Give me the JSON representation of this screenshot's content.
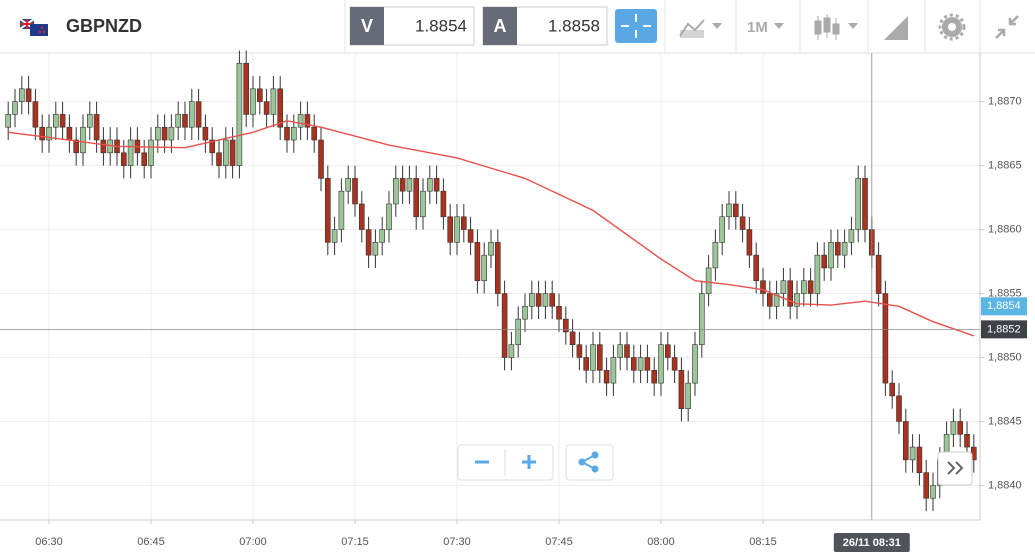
{
  "toolbar": {
    "symbol": "GBPNZD",
    "bid_label": "V",
    "bid": "1.8854",
    "ask_label": "A",
    "ask": "1.8858",
    "timeframe": "1M"
  },
  "chart_data": {
    "type": "candlestick",
    "categories": [
      "06:24",
      "06:25",
      "06:26",
      "06:27",
      "06:28",
      "06:29",
      "06:30",
      "06:31",
      "06:32",
      "06:33",
      "06:34",
      "06:35",
      "06:36",
      "06:37",
      "06:38",
      "06:39",
      "06:40",
      "06:41",
      "06:42",
      "06:43",
      "06:44",
      "06:45",
      "06:46",
      "06:47",
      "06:48",
      "06:49",
      "06:50",
      "06:51",
      "06:52",
      "06:53",
      "06:54",
      "06:55",
      "06:56",
      "06:57",
      "06:58",
      "06:59",
      "07:00",
      "07:01",
      "07:02",
      "07:03",
      "07:04",
      "07:05",
      "07:06",
      "07:07",
      "07:08",
      "07:09",
      "07:10",
      "07:11",
      "07:12",
      "07:13",
      "07:14",
      "07:15",
      "07:16",
      "07:17",
      "07:18",
      "07:19",
      "07:20",
      "07:21",
      "07:22",
      "07:23",
      "07:24",
      "07:25",
      "07:26",
      "07:27",
      "07:28",
      "07:29",
      "07:30",
      "07:31",
      "07:32",
      "07:33",
      "07:34",
      "07:35",
      "07:36",
      "07:37",
      "07:38",
      "07:39",
      "07:40",
      "07:41",
      "07:42",
      "07:43",
      "07:44",
      "07:45",
      "07:46",
      "07:47",
      "07:48",
      "07:49",
      "07:50",
      "07:51",
      "07:52",
      "07:53",
      "07:54",
      "07:55",
      "07:56",
      "07:57",
      "07:58",
      "07:59",
      "08:00",
      "08:01",
      "08:02",
      "08:03",
      "08:04",
      "08:05",
      "08:06",
      "08:07",
      "08:08",
      "08:09",
      "08:10",
      "08:11",
      "08:12",
      "08:13",
      "08:14",
      "08:15",
      "08:16",
      "08:17",
      "08:18",
      "08:19",
      "08:20",
      "08:21",
      "08:22",
      "08:23",
      "08:24",
      "08:25",
      "08:26",
      "08:27",
      "08:28",
      "08:29",
      "08:30",
      "08:31",
      "08:32",
      "08:33",
      "08:34",
      "08:35",
      "08:36",
      "08:37",
      "08:38",
      "08:39",
      "08:40",
      "08:41",
      "08:42",
      "08:43",
      "08:44",
      "08:45",
      "08:46"
    ],
    "open": [
      1.8868,
      1.8869,
      1.887,
      1.8871,
      1.887,
      1.8868,
      1.8867,
      1.8868,
      1.8869,
      1.8868,
      1.8867,
      1.8866,
      1.8868,
      1.8869,
      1.8867,
      1.8866,
      1.8867,
      1.8866,
      1.8865,
      1.8867,
      1.8866,
      1.8865,
      1.8867,
      1.8868,
      1.8867,
      1.8868,
      1.8869,
      1.8868,
      1.887,
      1.8868,
      1.8867,
      1.8866,
      1.8865,
      1.8867,
      1.8865,
      1.8873,
      1.8869,
      1.8871,
      1.887,
      1.8869,
      1.8871,
      1.8868,
      1.8867,
      1.8868,
      1.8869,
      1.8868,
      1.8867,
      1.8864,
      1.8859,
      1.886,
      1.8863,
      1.8864,
      1.8862,
      1.886,
      1.8858,
      1.8859,
      1.886,
      1.8862,
      1.8864,
      1.8863,
      1.8864,
      1.8861,
      1.8863,
      1.8864,
      1.8863,
      1.8861,
      1.8859,
      1.8861,
      1.886,
      1.8859,
      1.8856,
      1.8858,
      1.8859,
      1.8855,
      1.885,
      1.8851,
      1.8853,
      1.8854,
      1.8855,
      1.8854,
      1.8855,
      1.8854,
      1.8853,
      1.8852,
      1.8851,
      1.885,
      1.8849,
      1.8851,
      1.8849,
      1.8848,
      1.885,
      1.8851,
      1.885,
      1.8849,
      1.885,
      1.8849,
      1.8848,
      1.8851,
      1.885,
      1.8849,
      1.8846,
      1.8848,
      1.8851,
      1.8855,
      1.8857,
      1.8859,
      1.8861,
      1.8862,
      1.8861,
      1.886,
      1.8858,
      1.8856,
      1.8855,
      1.8854,
      1.8855,
      1.8856,
      1.8854,
      1.8855,
      1.8856,
      1.8855,
      1.8858,
      1.8857,
      1.8859,
      1.8858,
      1.8859,
      1.886,
      1.8864,
      1.886,
      1.8858,
      1.8855,
      1.8848,
      1.8847,
      1.8845,
      1.8842,
      1.8843,
      1.8841,
      1.8839,
      1.884,
      1.8842,
      1.8844,
      1.8845,
      1.8844,
      1.8843
    ],
    "high": [
      1.887,
      1.8871,
      1.8872,
      1.8872,
      1.8871,
      1.8869,
      1.8869,
      1.887,
      1.887,
      1.8869,
      1.8868,
      1.8869,
      1.887,
      1.887,
      1.8868,
      1.8868,
      1.8868,
      1.8867,
      1.8868,
      1.8868,
      1.8867,
      1.8868,
      1.8869,
      1.8869,
      1.8869,
      1.887,
      1.887,
      1.8871,
      1.8871,
      1.8869,
      1.8868,
      1.8867,
      1.8868,
      1.8868,
      1.8874,
      1.8874,
      1.8872,
      1.8872,
      1.8871,
      1.8872,
      1.8872,
      1.8869,
      1.8869,
      1.887,
      1.887,
      1.8869,
      1.8868,
      1.8865,
      1.8861,
      1.8864,
      1.8865,
      1.8865,
      1.8863,
      1.8861,
      1.886,
      1.8861,
      1.8863,
      1.8865,
      1.8865,
      1.8865,
      1.8865,
      1.8864,
      1.8865,
      1.8865,
      1.8864,
      1.8862,
      1.8862,
      1.8862,
      1.8861,
      1.886,
      1.8859,
      1.886,
      1.886,
      1.8856,
      1.8852,
      1.8854,
      1.8855,
      1.8856,
      1.8856,
      1.8856,
      1.8856,
      1.8855,
      1.8854,
      1.8853,
      1.8852,
      1.8851,
      1.8852,
      1.8852,
      1.885,
      1.8851,
      1.8852,
      1.8852,
      1.8851,
      1.8851,
      1.8851,
      1.885,
      1.8852,
      1.8852,
      1.8851,
      1.885,
      1.8849,
      1.8852,
      1.8856,
      1.8858,
      1.886,
      1.8862,
      1.8863,
      1.8863,
      1.8862,
      1.8861,
      1.8859,
      1.8857,
      1.8856,
      1.8856,
      1.8857,
      1.8857,
      1.8856,
      1.8857,
      1.8857,
      1.8859,
      1.8859,
      1.886,
      1.886,
      1.886,
      1.8861,
      1.8865,
      1.8865,
      1.8861,
      1.8859,
      1.8856,
      1.8849,
      1.8848,
      1.8846,
      1.8844,
      1.8844,
      1.8842,
      1.8841,
      1.8843,
      1.8845,
      1.8846,
      1.8846,
      1.8845,
      1.8844
    ],
    "low": [
      1.8867,
      1.8868,
      1.8869,
      1.8869,
      1.8867,
      1.8866,
      1.8866,
      1.8867,
      1.8867,
      1.8866,
      1.8865,
      1.8865,
      1.8867,
      1.8866,
      1.8865,
      1.8865,
      1.8865,
      1.8864,
      1.8864,
      1.8865,
      1.8864,
      1.8864,
      1.8866,
      1.8866,
      1.8866,
      1.8867,
      1.8867,
      1.8867,
      1.8867,
      1.8866,
      1.8865,
      1.8864,
      1.8864,
      1.8864,
      1.8864,
      1.8868,
      1.8868,
      1.8869,
      1.8868,
      1.8868,
      1.8867,
      1.8866,
      1.8866,
      1.8867,
      1.8867,
      1.8866,
      1.8863,
      1.8858,
      1.8858,
      1.8859,
      1.8862,
      1.8861,
      1.8859,
      1.8857,
      1.8857,
      1.8858,
      1.8859,
      1.8861,
      1.8862,
      1.8862,
      1.886,
      1.886,
      1.8862,
      1.8862,
      1.886,
      1.8858,
      1.8858,
      1.8859,
      1.8858,
      1.8855,
      1.8855,
      1.8857,
      1.8854,
      1.8849,
      1.8849,
      1.885,
      1.8852,
      1.8853,
      1.8853,
      1.8853,
      1.8853,
      1.8852,
      1.8851,
      1.885,
      1.8849,
      1.8848,
      1.8848,
      1.8848,
      1.8847,
      1.8847,
      1.8849,
      1.8849,
      1.8848,
      1.8848,
      1.8848,
      1.8847,
      1.8847,
      1.8849,
      1.8848,
      1.8845,
      1.8845,
      1.8847,
      1.885,
      1.8854,
      1.8856,
      1.8858,
      1.886,
      1.886,
      1.8859,
      1.8857,
      1.8855,
      1.8854,
      1.8853,
      1.8853,
      1.8854,
      1.8853,
      1.8853,
      1.8854,
      1.8854,
      1.8854,
      1.8856,
      1.8856,
      1.8857,
      1.8857,
      1.8858,
      1.8859,
      1.8859,
      1.8857,
      1.8854,
      1.8847,
      1.8846,
      1.8844,
      1.8841,
      1.8841,
      1.884,
      1.8838,
      1.8838,
      1.8839,
      1.8841,
      1.8843,
      1.8843,
      1.8842,
      1.8841
    ],
    "close": [
      1.8869,
      1.887,
      1.8871,
      1.887,
      1.8868,
      1.8867,
      1.8868,
      1.8869,
      1.8868,
      1.8867,
      1.8866,
      1.8868,
      1.8869,
      1.8867,
      1.8866,
      1.8867,
      1.8866,
      1.8865,
      1.8867,
      1.8866,
      1.8865,
      1.8867,
      1.8868,
      1.8867,
      1.8868,
      1.8869,
      1.8868,
      1.887,
      1.8868,
      1.8867,
      1.8866,
      1.8865,
      1.8867,
      1.8865,
      1.8873,
      1.8869,
      1.8871,
      1.887,
      1.8869,
      1.8871,
      1.8868,
      1.8867,
      1.8868,
      1.8869,
      1.8868,
      1.8867,
      1.8864,
      1.8859,
      1.886,
      1.8863,
      1.8864,
      1.8862,
      1.886,
      1.8858,
      1.8859,
      1.886,
      1.8862,
      1.8864,
      1.8863,
      1.8864,
      1.8861,
      1.8863,
      1.8864,
      1.8863,
      1.8861,
      1.8859,
      1.8861,
      1.886,
      1.8859,
      1.8856,
      1.8858,
      1.8859,
      1.8855,
      1.885,
      1.8851,
      1.8853,
      1.8854,
      1.8855,
      1.8854,
      1.8855,
      1.8854,
      1.8853,
      1.8852,
      1.8851,
      1.885,
      1.8849,
      1.8851,
      1.8849,
      1.8848,
      1.885,
      1.8851,
      1.885,
      1.8849,
      1.885,
      1.8849,
      1.8848,
      1.8851,
      1.885,
      1.8849,
      1.8846,
      1.8848,
      1.8851,
      1.8855,
      1.8857,
      1.8859,
      1.8861,
      1.8862,
      1.8861,
      1.886,
      1.8858,
      1.8856,
      1.8855,
      1.8854,
      1.8855,
      1.8856,
      1.8854,
      1.8855,
      1.8856,
      1.8855,
      1.8858,
      1.8857,
      1.8859,
      1.8858,
      1.8859,
      1.886,
      1.8864,
      1.886,
      1.8858,
      1.8855,
      1.8848,
      1.8847,
      1.8845,
      1.8842,
      1.8843,
      1.8841,
      1.8839,
      1.884,
      1.8842,
      1.8844,
      1.8845,
      1.8844,
      1.8843,
      1.8842
    ],
    "colors": {
      "up": "#9cc59a",
      "down": "#a8331f",
      "outline": "#333333"
    },
    "moving_average": {
      "color": "#e8514b",
      "x": [
        "06:24",
        "06:30",
        "06:40",
        "06:50",
        "07:00",
        "07:05",
        "07:10",
        "07:20",
        "07:30",
        "07:40",
        "07:50",
        "08:00",
        "08:05",
        "08:10",
        "08:15",
        "08:20",
        "08:25",
        "08:30",
        "08:35",
        "08:40",
        "08:46"
      ],
      "values": [
        1.88676,
        1.88672,
        1.88665,
        1.88664,
        1.88676,
        1.88685,
        1.8868,
        1.88666,
        1.88656,
        1.8864,
        1.88615,
        1.88577,
        1.8856,
        1.88557,
        1.88553,
        1.88542,
        1.88541,
        1.88544,
        1.8854,
        1.88528,
        1.88517
      ]
    },
    "ylim": [
      1.88373,
      1.88738
    ],
    "yticks": [
      {
        "value": 1.884,
        "label": "1,8840"
      },
      {
        "value": 1.8845,
        "label": "1,8845"
      },
      {
        "value": 1.885,
        "label": "1,8850"
      },
      {
        "value": 1.8855,
        "label": "1,8855"
      },
      {
        "value": 1.886,
        "label": "1,8860"
      },
      {
        "value": 1.8865,
        "label": "1,8865"
      },
      {
        "value": 1.887,
        "label": "1,8870"
      }
    ],
    "xticks": [
      "06:30",
      "06:45",
      "07:00",
      "07:15",
      "07:30",
      "07:45",
      "08:00",
      "08:15"
    ],
    "grid": true,
    "bid_marker": {
      "value": 1.8854,
      "label": "1,8854",
      "color": "#5bb5e2"
    },
    "crosshair": {
      "y": {
        "value": 1.88522,
        "label": "1,8852"
      },
      "x": {
        "value": "08:31",
        "label": "26/11 08:31"
      }
    }
  }
}
